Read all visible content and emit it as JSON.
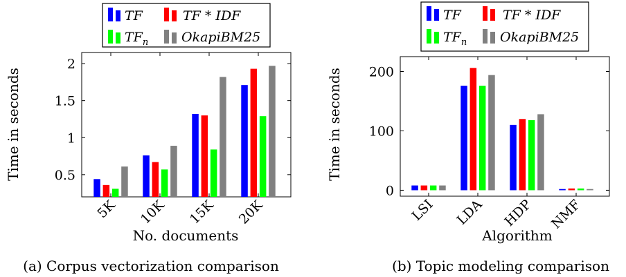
{
  "chart_data": [
    {
      "type": "bar",
      "caption": "(a) Corpus vectorization comparison",
      "xlabel": "No. documents",
      "ylabel": "Time in seconds",
      "categories": [
        "5K",
        "10K",
        "15K",
        "20K"
      ],
      "ylim": [
        0.2,
        2.15
      ],
      "yticks": [
        0.5,
        1,
        1.5,
        2
      ],
      "ytick_labels": [
        "0.5",
        "1",
        "1.5",
        "2"
      ],
      "grid": false,
      "legend_position": "top",
      "series": [
        {
          "name": "TF",
          "color": "#0000ff",
          "values": [
            0.44,
            0.76,
            1.32,
            1.71
          ]
        },
        {
          "name": "TF * IDF",
          "color": "#ff0000",
          "values": [
            0.36,
            0.67,
            1.3,
            1.93
          ]
        },
        {
          "name": "TF_n",
          "color": "#00ff00",
          "values": [
            0.31,
            0.57,
            0.84,
            1.29
          ]
        },
        {
          "name": "OkapiBM25",
          "color": "#808080",
          "values": [
            0.61,
            0.89,
            1.82,
            1.97
          ]
        }
      ]
    },
    {
      "type": "bar",
      "caption": "(b) Topic modeling comparison",
      "xlabel": "Algorithm",
      "ylabel": "Time in seconds",
      "categories": [
        "LSI",
        "LDA",
        "HDP",
        "NMF"
      ],
      "ylim": [
        -10,
        225
      ],
      "yticks": [
        0,
        100,
        200
      ],
      "ytick_labels": [
        "0",
        "100",
        "200"
      ],
      "grid": false,
      "legend_position": "top",
      "series": [
        {
          "name": "TF",
          "color": "#0000ff",
          "values": [
            8,
            176,
            110,
            2
          ]
        },
        {
          "name": "TF * IDF",
          "color": "#ff0000",
          "values": [
            8,
            206,
            120,
            3
          ]
        },
        {
          "name": "TF_n",
          "color": "#00ff00",
          "values": [
            8,
            176,
            118,
            3
          ]
        },
        {
          "name": "OkapiBM25",
          "color": "#808080",
          "values": [
            8,
            194,
            128,
            2
          ]
        }
      ]
    }
  ],
  "legend_labels": {
    "tf": "TF",
    "tfidf": "TF * IDF",
    "tfn_base": "TF",
    "tfn_sub": "n",
    "okapi": "OkapiBM25"
  }
}
